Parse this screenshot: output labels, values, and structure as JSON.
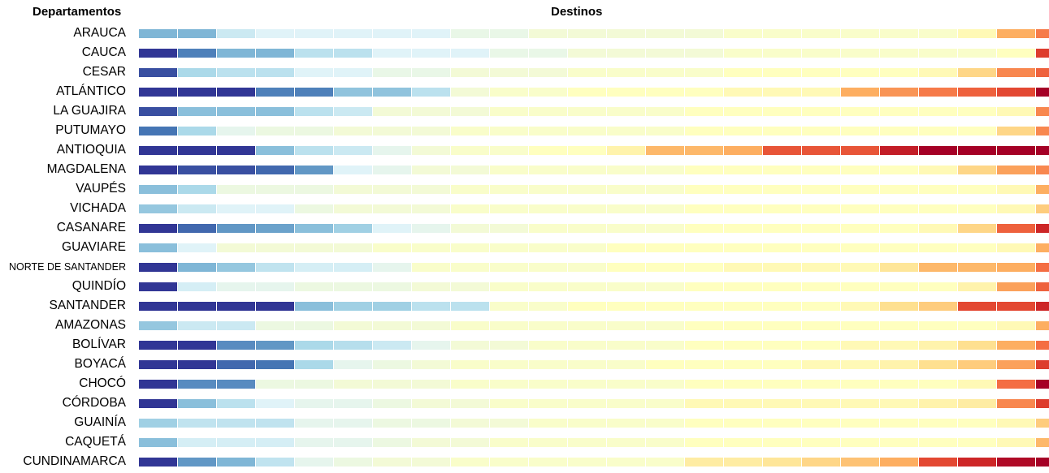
{
  "chart_data": {
    "type": "heatmap",
    "row_header": "Departamentos",
    "column_header": "Destinos",
    "color_scale": [
      "#313695",
      "#4575b4",
      "#74add1",
      "#abd9e9",
      "#e0f3f8",
      "#ffffbf",
      "#fee090",
      "#fdae61",
      "#f46d43",
      "#d73027",
      "#a50026"
    ],
    "rows": [
      {
        "label": "ARAUCA",
        "values": [
          0.22,
          0.22,
          0.36,
          0.4,
          0.4,
          0.4,
          0.4,
          0.4,
          0.43,
          0.43,
          0.46,
          0.46,
          0.46,
          0.46,
          0.46,
          0.48,
          0.48,
          0.48,
          0.48,
          0.48,
          0.48,
          0.52,
          0.7,
          0.78
        ]
      },
      {
        "label": "CAUCA",
        "values": [
          0.0,
          0.12,
          0.22,
          0.22,
          0.33,
          0.33,
          0.4,
          0.4,
          0.4,
          0.43,
          0.43,
          0.46,
          0.46,
          0.46,
          0.46,
          0.48,
          0.48,
          0.48,
          0.48,
          0.48,
          0.48,
          0.48,
          0.5,
          0.88
        ]
      },
      {
        "label": "CESAR",
        "values": [
          0.04,
          0.3,
          0.33,
          0.33,
          0.4,
          0.4,
          0.43,
          0.43,
          0.46,
          0.46,
          0.46,
          0.48,
          0.48,
          0.48,
          0.48,
          0.5,
          0.5,
          0.5,
          0.5,
          0.5,
          0.52,
          0.62,
          0.76,
          0.82
        ]
      },
      {
        "label": "ATLÁNTICO",
        "values": [
          0.0,
          0.0,
          0.0,
          0.12,
          0.12,
          0.25,
          0.25,
          0.33,
          0.46,
          0.48,
          0.48,
          0.5,
          0.5,
          0.5,
          0.5,
          0.52,
          0.52,
          0.52,
          0.7,
          0.74,
          0.78,
          0.82,
          0.86,
          1.0
        ]
      },
      {
        "label": "LA GUAJIRA",
        "values": [
          0.04,
          0.24,
          0.24,
          0.24,
          0.33,
          0.36,
          0.46,
          0.46,
          0.46,
          0.48,
          0.48,
          0.48,
          0.48,
          0.48,
          0.5,
          0.5,
          0.5,
          0.5,
          0.5,
          0.5,
          0.5,
          0.5,
          0.52,
          0.76
        ]
      },
      {
        "label": "PUTUMAYO",
        "values": [
          0.1,
          0.3,
          0.42,
          0.44,
          0.44,
          0.46,
          0.46,
          0.46,
          0.48,
          0.48,
          0.48,
          0.48,
          0.48,
          0.48,
          0.5,
          0.5,
          0.5,
          0.5,
          0.5,
          0.5,
          0.5,
          0.5,
          0.62,
          0.76
        ]
      },
      {
        "label": "ANTIOQUIA",
        "values": [
          0.0,
          0.0,
          0.0,
          0.24,
          0.33,
          0.36,
          0.42,
          0.46,
          0.48,
          0.48,
          0.5,
          0.5,
          0.54,
          0.68,
          0.68,
          0.7,
          0.84,
          0.84,
          0.84,
          0.94,
          1.0,
          1.0,
          1.0,
          1.0
        ]
      },
      {
        "label": "MAGDALENA",
        "values": [
          0.0,
          0.04,
          0.04,
          0.08,
          0.16,
          0.4,
          0.42,
          0.46,
          0.46,
          0.48,
          0.48,
          0.48,
          0.48,
          0.48,
          0.5,
          0.5,
          0.5,
          0.5,
          0.5,
          0.5,
          0.52,
          0.62,
          0.72,
          0.76
        ]
      },
      {
        "label": "VAUPÉS",
        "values": [
          0.24,
          0.3,
          0.44,
          0.44,
          0.44,
          0.46,
          0.46,
          0.46,
          0.48,
          0.48,
          0.48,
          0.48,
          0.48,
          0.48,
          0.5,
          0.5,
          0.5,
          0.5,
          0.5,
          0.5,
          0.5,
          0.5,
          0.52,
          0.7
        ]
      },
      {
        "label": "VICHADA",
        "values": [
          0.26,
          0.36,
          0.4,
          0.4,
          0.44,
          0.46,
          0.46,
          0.46,
          0.48,
          0.48,
          0.48,
          0.48,
          0.48,
          0.48,
          0.5,
          0.5,
          0.5,
          0.5,
          0.5,
          0.5,
          0.5,
          0.5,
          0.52,
          0.64
        ]
      },
      {
        "label": "CASANARE",
        "values": [
          0.0,
          0.08,
          0.16,
          0.18,
          0.24,
          0.28,
          0.4,
          0.42,
          0.46,
          0.46,
          0.48,
          0.48,
          0.48,
          0.48,
          0.5,
          0.5,
          0.5,
          0.5,
          0.5,
          0.5,
          0.52,
          0.62,
          0.82,
          0.92
        ]
      },
      {
        "label": "GUAVIARE",
        "values": [
          0.24,
          0.4,
          0.46,
          0.46,
          0.46,
          0.46,
          0.48,
          0.48,
          0.48,
          0.48,
          0.48,
          0.48,
          0.5,
          0.5,
          0.5,
          0.5,
          0.5,
          0.5,
          0.5,
          0.5,
          0.5,
          0.5,
          0.52,
          0.7
        ]
      },
      {
        "label": "NORTE DE SANTANDER",
        "values": [
          0.0,
          0.22,
          0.26,
          0.34,
          0.38,
          0.38,
          0.42,
          0.48,
          0.48,
          0.48,
          0.48,
          0.48,
          0.5,
          0.5,
          0.5,
          0.52,
          0.52,
          0.52,
          0.52,
          0.58,
          0.68,
          0.68,
          0.7,
          0.8
        ]
      },
      {
        "label": "QUINDÍO",
        "values": [
          0.0,
          0.38,
          0.42,
          0.42,
          0.44,
          0.44,
          0.44,
          0.46,
          0.46,
          0.48,
          0.48,
          0.48,
          0.48,
          0.48,
          0.5,
          0.5,
          0.5,
          0.5,
          0.5,
          0.5,
          0.5,
          0.54,
          0.72,
          0.82
        ]
      },
      {
        "label": "SANTANDER",
        "values": [
          0.0,
          0.0,
          0.0,
          0.0,
          0.24,
          0.28,
          0.28,
          0.33,
          0.33,
          0.48,
          0.48,
          0.5,
          0.5,
          0.5,
          0.5,
          0.5,
          0.5,
          0.5,
          0.52,
          0.6,
          0.64,
          0.86,
          0.86,
          0.92
        ]
      },
      {
        "label": "AMAZONAS",
        "values": [
          0.26,
          0.36,
          0.36,
          0.44,
          0.44,
          0.46,
          0.46,
          0.46,
          0.48,
          0.48,
          0.48,
          0.48,
          0.48,
          0.48,
          0.5,
          0.5,
          0.5,
          0.5,
          0.5,
          0.5,
          0.5,
          0.5,
          0.52,
          0.7
        ]
      },
      {
        "label": "BOLÍVAR",
        "values": [
          0.0,
          0.0,
          0.14,
          0.16,
          0.3,
          0.32,
          0.36,
          0.42,
          0.46,
          0.46,
          0.48,
          0.48,
          0.48,
          0.48,
          0.5,
          0.5,
          0.5,
          0.5,
          0.52,
          0.52,
          0.54,
          0.6,
          0.7,
          0.8
        ]
      },
      {
        "label": "BOYACÁ",
        "values": [
          0.0,
          0.0,
          0.08,
          0.1,
          0.3,
          0.42,
          0.44,
          0.46,
          0.48,
          0.48,
          0.48,
          0.48,
          0.48,
          0.5,
          0.5,
          0.5,
          0.5,
          0.52,
          0.52,
          0.54,
          0.6,
          0.64,
          0.72,
          0.88
        ]
      },
      {
        "label": "CHOCÓ",
        "values": [
          0.0,
          0.14,
          0.14,
          0.44,
          0.44,
          0.46,
          0.46,
          0.46,
          0.48,
          0.48,
          0.48,
          0.48,
          0.48,
          0.48,
          0.5,
          0.5,
          0.5,
          0.5,
          0.5,
          0.5,
          0.5,
          0.52,
          0.8,
          1.0
        ]
      },
      {
        "label": "CÓRDOBA",
        "values": [
          0.0,
          0.24,
          0.33,
          0.4,
          0.42,
          0.42,
          0.44,
          0.46,
          0.46,
          0.48,
          0.48,
          0.48,
          0.48,
          0.48,
          0.52,
          0.52,
          0.52,
          0.52,
          0.52,
          0.52,
          0.54,
          0.56,
          0.76,
          0.88
        ]
      },
      {
        "label": "GUAINÍA",
        "values": [
          0.28,
          0.34,
          0.34,
          0.34,
          0.42,
          0.42,
          0.44,
          0.44,
          0.46,
          0.46,
          0.48,
          0.48,
          0.48,
          0.48,
          0.5,
          0.5,
          0.5,
          0.5,
          0.5,
          0.5,
          0.5,
          0.5,
          0.52,
          0.64
        ]
      },
      {
        "label": "CAQUETÁ",
        "values": [
          0.24,
          0.38,
          0.38,
          0.38,
          0.42,
          0.42,
          0.44,
          0.46,
          0.46,
          0.48,
          0.48,
          0.48,
          0.48,
          0.48,
          0.5,
          0.5,
          0.5,
          0.5,
          0.5,
          0.5,
          0.5,
          0.5,
          0.52,
          0.68
        ]
      },
      {
        "label": "CUNDINAMARCA",
        "values": [
          0.0,
          0.16,
          0.22,
          0.34,
          0.42,
          0.44,
          0.46,
          0.46,
          0.48,
          0.48,
          0.48,
          0.48,
          0.48,
          0.48,
          0.56,
          0.56,
          0.58,
          0.62,
          0.66,
          0.7,
          0.86,
          0.92,
          0.98,
          1.0
        ]
      }
    ]
  }
}
